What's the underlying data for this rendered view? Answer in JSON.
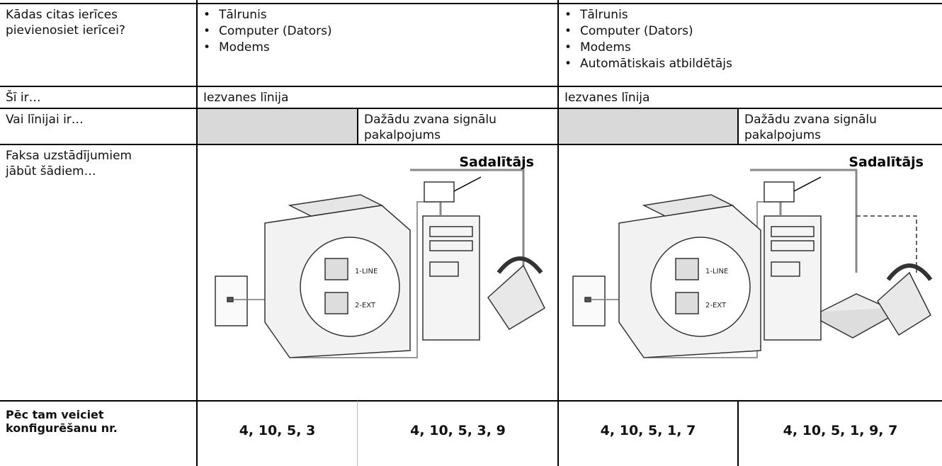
{
  "table": {
    "rows": [
      {
        "label": "Kādas citas ierīces pievienosiet ierīcei?",
        "left": [
          "Tālrunis",
          "Computer (Dators)",
          "Modems"
        ],
        "right": [
          "Tālrunis",
          "Computer (Dators)",
          "Modems",
          "Automātiskais atbildētājs"
        ]
      },
      {
        "label": "Šī ir…",
        "left": "Iezvanes līnija",
        "right": "Iezvanes līnija"
      },
      {
        "label": "Vai līnijai ir…",
        "left": "Dažādu zvana signālu pakalpojums",
        "right": "Dažādu zvana signālu pakalpojums"
      },
      {
        "label": "Faksa uzstādījumiem jābūt šādiem…",
        "left": {
          "splitter": "Sadalītājs",
          "port1": "1-LINE",
          "port2": "2-EXT"
        },
        "right": {
          "splitter": "Sadalītājs",
          "port1": "1-LINE",
          "port2": "2-EXT"
        }
      },
      {
        "label": "Pēc tam veiciet konfigurēšanu nr.",
        "cells": [
          "4, 10, 5, 3",
          "4, 10, 5, 3, 9",
          "4, 10, 5, 1, 7",
          "4, 10, 5, 1, 9, 7"
        ]
      }
    ]
  }
}
